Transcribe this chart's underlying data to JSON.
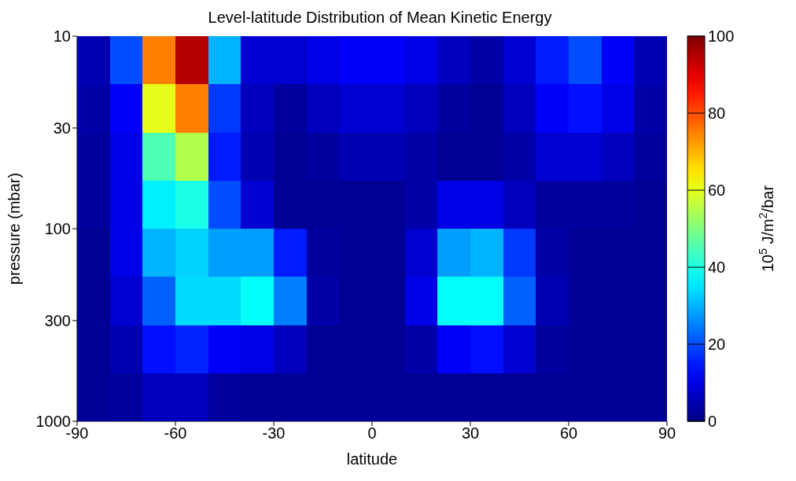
{
  "chart_data": {
    "type": "heatmap",
    "title": "Level-latitude Distribution of Mean Kinetic Energy",
    "xlabel": "latitude",
    "ylabel": "pressure (mbar)",
    "clabel": "10$^{5}$ J/m$^{2}$/bar",
    "log": "y",
    "xlim": [
      -90,
      90
    ],
    "xticks": [
      -90,
      -60,
      -30,
      0,
      30,
      60,
      90
    ],
    "ylim": [
      1000,
      10
    ],
    "yticks": [
      10,
      30,
      100,
      300,
      1000
    ],
    "clim": [
      0,
      100
    ],
    "cticks": [
      0,
      20,
      40,
      60,
      80,
      100
    ],
    "cells": [
      [
        5,
        20,
        75,
        95,
        30,
        8,
        8,
        10,
        12,
        12,
        10,
        6,
        4,
        8,
        15,
        20,
        12,
        5
      ],
      [
        4,
        12,
        60,
        75,
        18,
        6,
        3,
        6,
        8,
        8,
        6,
        3,
        2,
        6,
        12,
        14,
        10,
        4
      ],
      [
        3,
        10,
        45,
        55,
        15,
        5,
        2,
        3,
        5,
        5,
        4,
        2,
        2,
        4,
        8,
        8,
        6,
        3
      ],
      [
        3,
        10,
        36,
        40,
        20,
        8,
        2,
        2,
        2,
        2,
        4,
        10,
        10,
        6,
        3,
        3,
        3,
        2
      ],
      [
        2,
        10,
        30,
        33,
        28,
        28,
        15,
        3,
        2,
        2,
        8,
        28,
        30,
        18,
        4,
        2,
        2,
        2
      ],
      [
        2,
        8,
        22,
        34,
        34,
        38,
        25,
        4,
        2,
        2,
        10,
        38,
        38,
        22,
        5,
        2,
        2,
        2
      ],
      [
        2,
        5,
        14,
        16,
        12,
        10,
        6,
        2,
        2,
        2,
        4,
        12,
        14,
        8,
        3,
        2,
        2,
        2
      ],
      [
        2,
        3,
        6,
        6,
        3,
        2,
        2,
        2,
        2,
        2,
        2,
        2,
        2,
        2,
        2,
        2,
        2,
        2
      ]
    ]
  }
}
